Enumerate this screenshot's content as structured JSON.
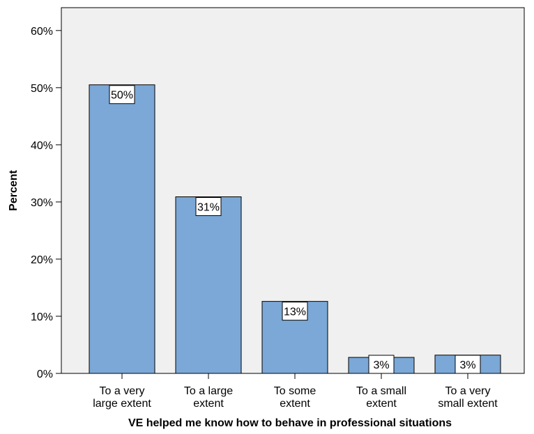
{
  "chart_data": {
    "type": "bar",
    "title": "",
    "xlabel": "VE helped me know how to behave in professional situations",
    "ylabel": "Percent",
    "ylim": [
      0,
      64
    ],
    "yticks": [
      0,
      10,
      20,
      30,
      40,
      50,
      60
    ],
    "ytick_labels": [
      "0%",
      "10%",
      "20%",
      "30%",
      "40%",
      "50%",
      "60%"
    ],
    "categories": [
      [
        "To a very",
        "large extent"
      ],
      [
        "To a large",
        "extent"
      ],
      [
        "To some",
        "extent"
      ],
      [
        "To a small",
        "extent"
      ],
      [
        "To a very",
        "small extent"
      ]
    ],
    "values": [
      50.5,
      30.9,
      12.6,
      2.8,
      3.2
    ],
    "data_labels": [
      "50%",
      "31%",
      "13%",
      "3%",
      "3%"
    ],
    "grid": false,
    "legend": "none"
  },
  "colors": {
    "bar_fill": "#7ba8d6",
    "plot_background": "#f0f0f0",
    "outline": "#000000"
  }
}
